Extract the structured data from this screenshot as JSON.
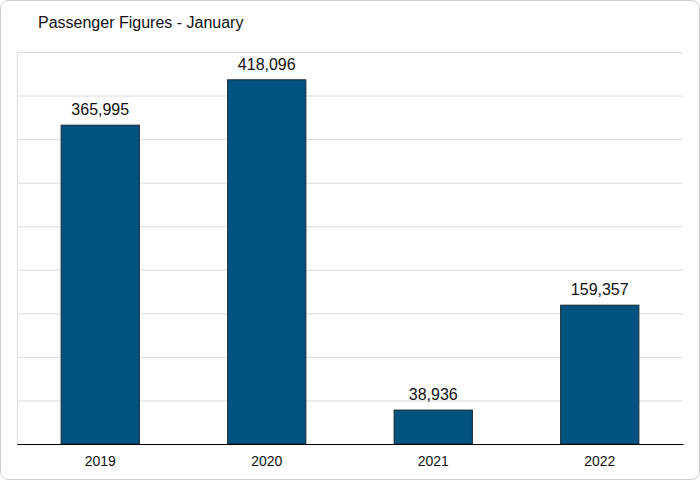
{
  "chart_data": {
    "type": "bar",
    "title": "Passenger Figures - January",
    "categories": [
      "2019",
      "2020",
      "2021",
      "2022"
    ],
    "values": [
      365995,
      418096,
      38936,
      159357
    ],
    "value_labels": [
      "365,995",
      "418,096",
      "38,936",
      "159,357"
    ],
    "color": "#00527f",
    "ylim": [
      0,
      450000
    ],
    "yticks": [
      0,
      50000,
      100000,
      150000,
      200000,
      250000,
      300000,
      350000,
      400000,
      450000
    ],
    "grid": true,
    "data_labels": true,
    "tick_labels": "x"
  }
}
